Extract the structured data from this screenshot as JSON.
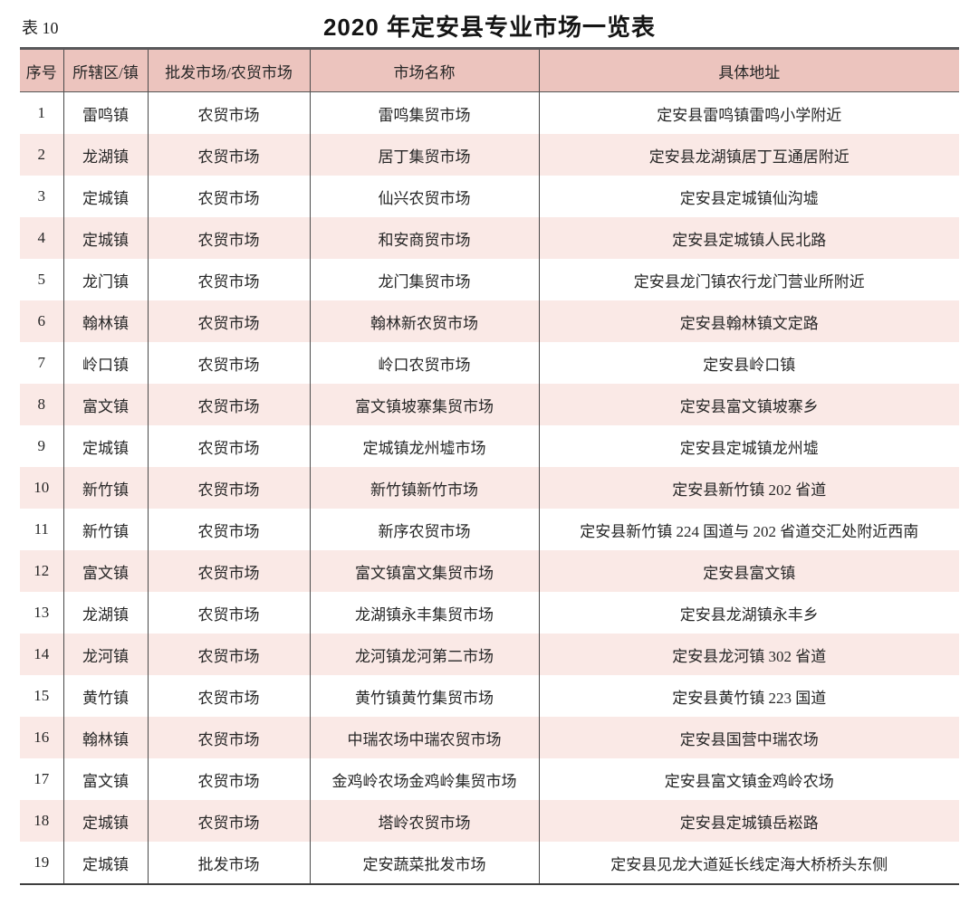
{
  "page": {
    "table_label": "表 10",
    "title": "2020 年定安县专业市场一览表"
  },
  "colors": {
    "header_bg": "#ecc4be",
    "stripe_bg": "#fae9e6",
    "border_dark": "#4a4a4a",
    "border_top": "#59595b",
    "text": "#262626"
  },
  "table": {
    "columns": [
      "序号",
      "所辖区/镇",
      "批发市场/农贸市场",
      "市场名称",
      "具体地址"
    ],
    "rows": [
      [
        "1",
        "雷鸣镇",
        "农贸市场",
        "雷鸣集贸市场",
        "定安县雷鸣镇雷鸣小学附近"
      ],
      [
        "2",
        "龙湖镇",
        "农贸市场",
        "居丁集贸市场",
        "定安县龙湖镇居丁互通居附近"
      ],
      [
        "3",
        "定城镇",
        "农贸市场",
        "仙兴农贸市场",
        "定安县定城镇仙沟墟"
      ],
      [
        "4",
        "定城镇",
        "农贸市场",
        "和安商贸市场",
        "定安县定城镇人民北路"
      ],
      [
        "5",
        "龙门镇",
        "农贸市场",
        "龙门集贸市场",
        "定安县龙门镇农行龙门营业所附近"
      ],
      [
        "6",
        "翰林镇",
        "农贸市场",
        "翰林新农贸市场",
        "定安县翰林镇文定路"
      ],
      [
        "7",
        "岭口镇",
        "农贸市场",
        "岭口农贸市场",
        "定安县岭口镇"
      ],
      [
        "8",
        "富文镇",
        "农贸市场",
        "富文镇坡寨集贸市场",
        "定安县富文镇坡寨乡"
      ],
      [
        "9",
        "定城镇",
        "农贸市场",
        "定城镇龙州墟市场",
        "定安县定城镇龙州墟"
      ],
      [
        "10",
        "新竹镇",
        "农贸市场",
        "新竹镇新竹市场",
        "定安县新竹镇 202 省道"
      ],
      [
        "11",
        "新竹镇",
        "农贸市场",
        "新序农贸市场",
        "定安县新竹镇 224 国道与 202 省道交汇处附近西南"
      ],
      [
        "12",
        "富文镇",
        "农贸市场",
        "富文镇富文集贸市场",
        "定安县富文镇"
      ],
      [
        "13",
        "龙湖镇",
        "农贸市场",
        "龙湖镇永丰集贸市场",
        "定安县龙湖镇永丰乡"
      ],
      [
        "14",
        "龙河镇",
        "农贸市场",
        "龙河镇龙河第二市场",
        "定安县龙河镇 302 省道"
      ],
      [
        "15",
        "黄竹镇",
        "农贸市场",
        "黄竹镇黄竹集贸市场",
        "定安县黄竹镇 223 国道"
      ],
      [
        "16",
        "翰林镇",
        "农贸市场",
        "中瑞农场中瑞农贸市场",
        "定安县国营中瑞农场"
      ],
      [
        "17",
        "富文镇",
        "农贸市场",
        "金鸡岭农场金鸡岭集贸市场",
        "定安县富文镇金鸡岭农场"
      ],
      [
        "18",
        "定城镇",
        "农贸市场",
        "塔岭农贸市场",
        "定安县定城镇岳崧路"
      ],
      [
        "19",
        "定城镇",
        "批发市场",
        "定安蔬菜批发市场",
        "定安县见龙大道延长线定海大桥桥头东侧"
      ]
    ]
  }
}
